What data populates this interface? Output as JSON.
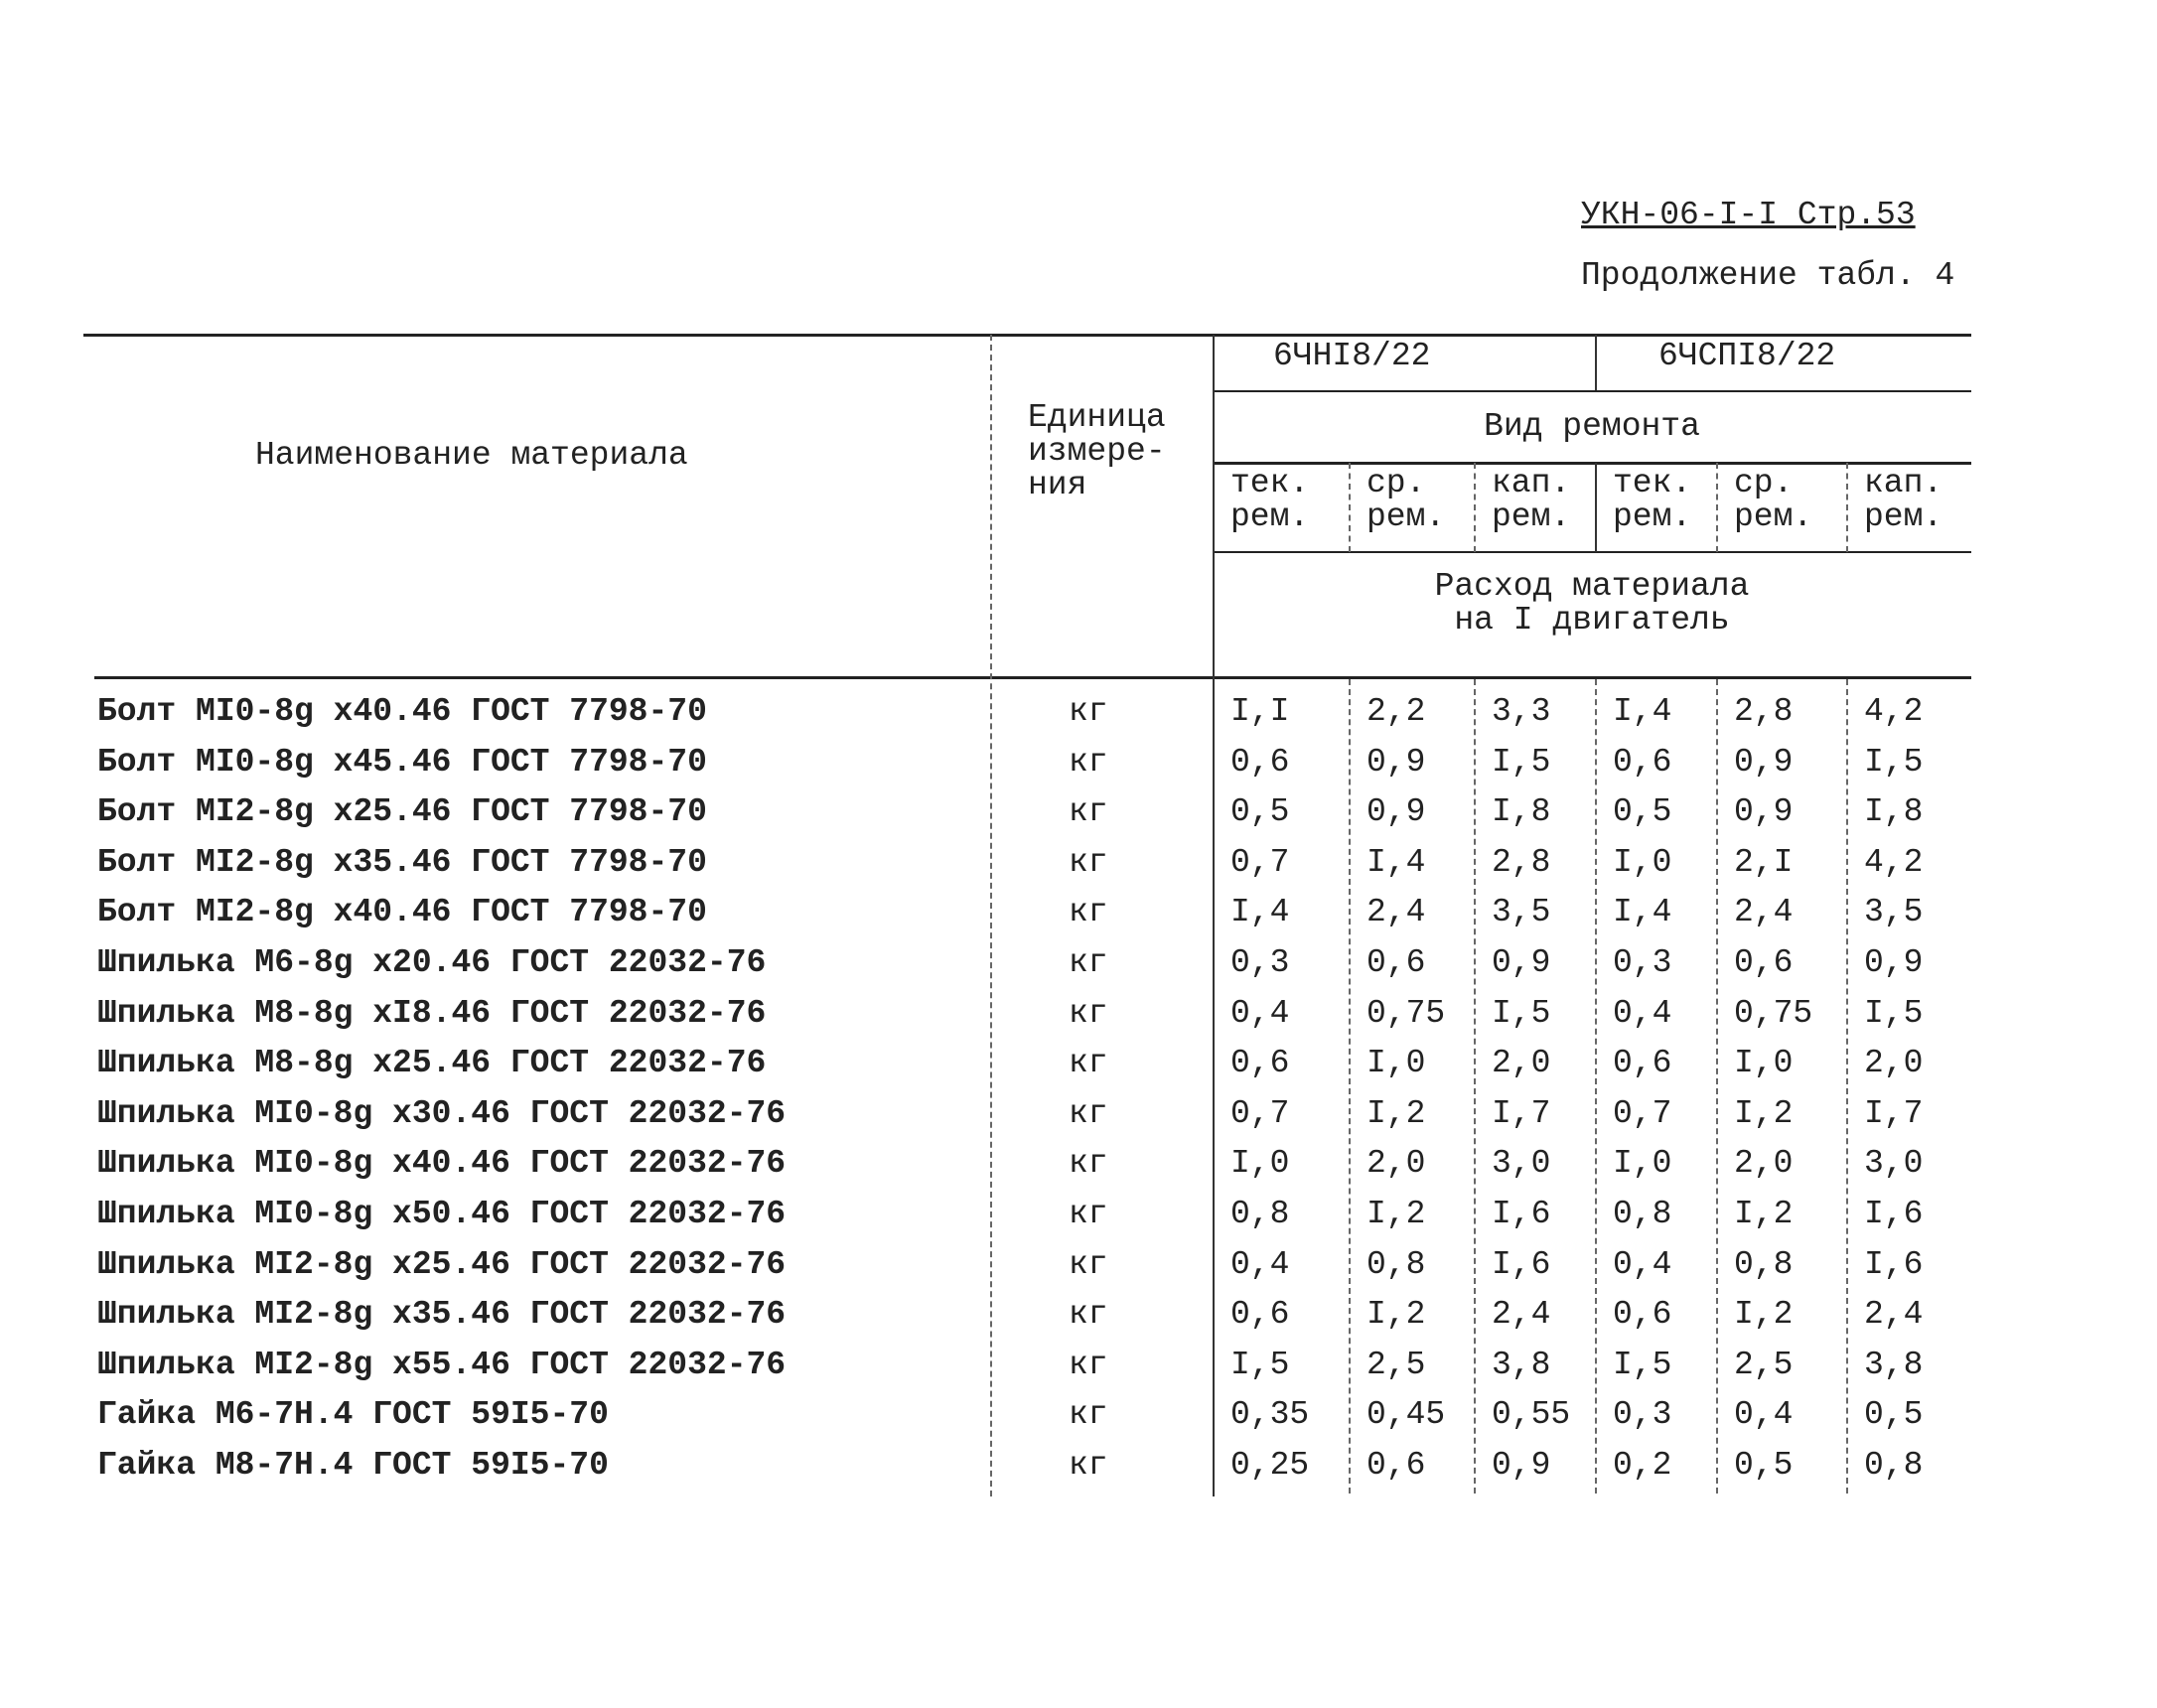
{
  "header": {
    "code": "УКН-06-I-I Стр.53",
    "continuation": "Продолжение табл. 4"
  },
  "table": {
    "columns": {
      "name": "Наименование материала",
      "unit": "Единица\nизмере-\nния",
      "engines": [
        "6ЧНI8/22",
        "6ЧСПI8/22"
      ],
      "repair_type": "Вид ремонта",
      "repairs": [
        "тек.\nрем.",
        "ср.\nрем.",
        "кап.\nрем.",
        "тек.\nрем.",
        "ср.\nрем.",
        "кап.\nрем."
      ],
      "consumption": "Расход материала\nна I двигатель"
    },
    "rows": [
      [
        "Болт MI0-8g x40.46 ГОСТ 7798-70",
        "кг",
        "I,I",
        "2,2",
        "3,3",
        "I,4",
        "2,8",
        "4,2"
      ],
      [
        "Болт MI0-8g x45.46 ГОСТ 7798-70",
        "кг",
        "0,6",
        "0,9",
        "I,5",
        "0,6",
        "0,9",
        "I,5"
      ],
      [
        "Болт MI2-8g x25.46 ГОСТ 7798-70",
        "кг",
        "0,5",
        "0,9",
        "I,8",
        "0,5",
        "0,9",
        "I,8"
      ],
      [
        "Болт MI2-8g x35.46 ГОСТ 7798-70",
        "кг",
        "0,7",
        "I,4",
        "2,8",
        "I,0",
        "2,I",
        "4,2"
      ],
      [
        "Болт MI2-8g x40.46 ГОСТ 7798-70",
        "кг",
        "I,4",
        "2,4",
        "3,5",
        "I,4",
        "2,4",
        "3,5"
      ],
      [
        "Шпилька M6-8g x20.46 ГОСТ 22032-76",
        "кг",
        "0,3",
        "0,6",
        "0,9",
        "0,3",
        "0,6",
        "0,9"
      ],
      [
        "Шпилька M8-8g xI8.46 ГОСТ 22032-76",
        "кг",
        "0,4",
        "0,75",
        "I,5",
        "0,4",
        "0,75",
        "I,5"
      ],
      [
        "Шпилька M8-8g x25.46 ГОСТ 22032-76",
        "кг",
        "0,6",
        "I,0",
        "2,0",
        "0,6",
        "I,0",
        "2,0"
      ],
      [
        "Шпилька MI0-8g x30.46 ГОСТ 22032-76",
        "кг",
        "0,7",
        "I,2",
        "I,7",
        "0,7",
        "I,2",
        "I,7"
      ],
      [
        "Шпилька MI0-8g x40.46 ГОСТ 22032-76",
        "кг",
        "I,0",
        "2,0",
        "3,0",
        "I,0",
        "2,0",
        "3,0"
      ],
      [
        "Шпилька MI0-8g x50.46 ГОСТ 22032-76",
        "кг",
        "0,8",
        "I,2",
        "I,6",
        "0,8",
        "I,2",
        "I,6"
      ],
      [
        "Шпилька MI2-8g x25.46 ГОСТ 22032-76",
        "кг",
        "0,4",
        "0,8",
        "I,6",
        "0,4",
        "0,8",
        "I,6"
      ],
      [
        "Шпилька MI2-8g x35.46 ГОСТ 22032-76",
        "кг",
        "0,6",
        "I,2",
        "2,4",
        "0,6",
        "I,2",
        "2,4"
      ],
      [
        "Шпилька MI2-8g x55.46 ГОСТ 22032-76",
        "кг",
        "I,5",
        "2,5",
        "3,8",
        "I,5",
        "2,5",
        "3,8"
      ],
      [
        "Гайка M6-7H.4 ГОСТ 59I5-70",
        "кг",
        "0,35",
        "0,45",
        "0,55",
        "0,3",
        "0,4",
        "0,5"
      ],
      [
        "Гайка M8-7H.4 ГОСТ 59I5-70",
        "кг",
        "0,25",
        "0,6",
        "0,9",
        "0,2",
        "0,5",
        "0,8"
      ]
    ]
  }
}
